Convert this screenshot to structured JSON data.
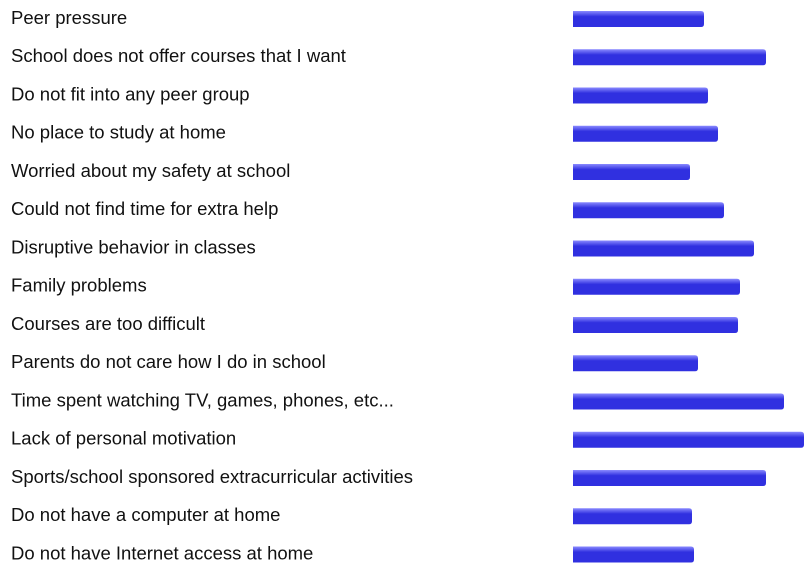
{
  "chart_data": {
    "type": "hbar",
    "categories": [
      "Peer pressure",
      "School does not offer courses that I want",
      "Do not fit into any peer group",
      "No place to study at home",
      "Worried about my safety at school",
      "Could not find time for extra help",
      "Disruptive behavior in classes",
      "Family problems",
      "Courses are too difficult",
      "Parents do not care how I do in school",
      "Time spent watching TV, games, phones, etc...",
      "Lack of personal motivation",
      "Sports/school sponsored extracurricular activities",
      "Do not have a computer at home",
      "Do not have Internet access at home"
    ],
    "values": [
      131,
      193,
      135,
      145,
      117,
      151,
      181,
      167,
      165,
      125,
      211,
      231,
      193,
      119,
      121
    ],
    "color": "#3030e0",
    "xlim": [
      0,
      231
    ]
  }
}
